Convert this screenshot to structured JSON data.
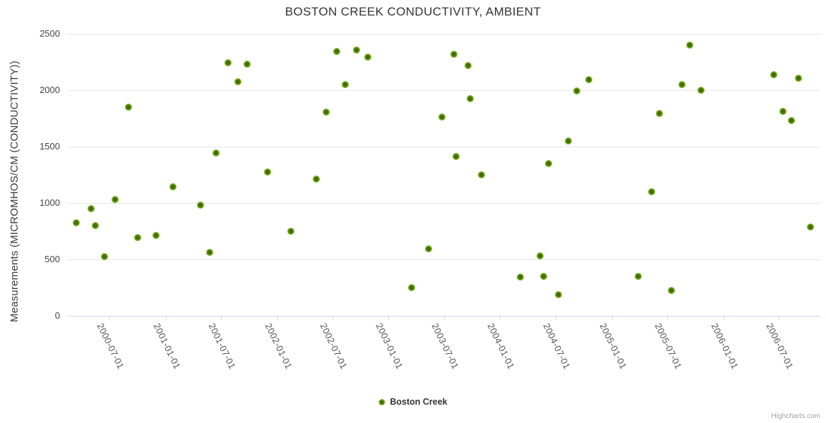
{
  "title": "BOSTON CREEK CONDUCTIVITY, AMBIENT",
  "legend": {
    "series_label": "Boston Creek"
  },
  "credits_label": "Highcharts.com",
  "colors": {
    "marker_outer": "#7cb41e",
    "marker_inner": "#406a06",
    "gridline": "#e6e6e6",
    "axis_line": "#ccd6eb",
    "title_text": "#333333",
    "axis_label_text": "#555555",
    "credits_text": "#a0a0aa",
    "background": "#ffffff"
  },
  "chart_data": {
    "type": "scatter",
    "title": "BOSTON CREEK CONDUCTIVITY, AMBIENT",
    "xlabel": "",
    "ylabel": "Measurements (MICROMHOS/CM (CONDUCTIVITY))",
    "ylim": [
      0,
      2500
    ],
    "y_ticks": [
      0,
      500,
      1000,
      1500,
      2000,
      2500
    ],
    "x_ticks": [
      "2000-07-01",
      "2001-01-01",
      "2001-07-01",
      "2002-01-01",
      "2002-07-01",
      "2003-01-01",
      "2003-07-01",
      "2004-01-01",
      "2004-07-01",
      "2005-01-01",
      "2005-07-01",
      "2006-01-01",
      "2006-07-01"
    ],
    "x_range": [
      "2000-02-13",
      "2006-11-14"
    ],
    "grid": true,
    "legend_position": "bottom-center",
    "series": [
      {
        "name": "Boston Creek",
        "points": [
          [
            "2000-03-15",
            820
          ],
          [
            "2000-05-01",
            950
          ],
          [
            "2000-05-15",
            800
          ],
          [
            "2000-06-15",
            520
          ],
          [
            "2000-07-20",
            1030
          ],
          [
            "2000-09-01",
            1850
          ],
          [
            "2000-10-01",
            690
          ],
          [
            "2000-12-01",
            710
          ],
          [
            "2001-01-25",
            1140
          ],
          [
            "2001-04-25",
            980
          ],
          [
            "2001-05-25",
            560
          ],
          [
            "2001-06-15",
            1440
          ],
          [
            "2001-07-25",
            2240
          ],
          [
            "2001-08-25",
            2070
          ],
          [
            "2001-09-25",
            2230
          ],
          [
            "2001-12-01",
            1270
          ],
          [
            "2002-02-15",
            750
          ],
          [
            "2002-05-10",
            1210
          ],
          [
            "2002-06-10",
            1805
          ],
          [
            "2002-07-15",
            2340
          ],
          [
            "2002-08-12",
            2045
          ],
          [
            "2002-09-18",
            2355
          ],
          [
            "2002-10-25",
            2290
          ],
          [
            "2003-03-18",
            250
          ],
          [
            "2003-05-12",
            590
          ],
          [
            "2003-06-24",
            1760
          ],
          [
            "2003-08-03",
            2315
          ],
          [
            "2003-08-10",
            1410
          ],
          [
            "2003-09-18",
            2215
          ],
          [
            "2003-09-24",
            1925
          ],
          [
            "2003-11-01",
            1245
          ],
          [
            "2004-03-06",
            340
          ],
          [
            "2004-05-10",
            530
          ],
          [
            "2004-05-22",
            350
          ],
          [
            "2004-06-07",
            1345
          ],
          [
            "2004-07-10",
            185
          ],
          [
            "2004-08-12",
            1550
          ],
          [
            "2004-09-08",
            1990
          ],
          [
            "2004-10-18",
            2090
          ],
          [
            "2005-03-28",
            345
          ],
          [
            "2005-05-10",
            1095
          ],
          [
            "2005-06-06",
            1790
          ],
          [
            "2005-07-15",
            225
          ],
          [
            "2005-08-18",
            2045
          ],
          [
            "2005-09-12",
            2400
          ],
          [
            "2005-10-19",
            1995
          ],
          [
            "2006-06-15",
            2135
          ],
          [
            "2006-07-15",
            1810
          ],
          [
            "2006-08-12",
            1730
          ],
          [
            "2006-09-03",
            2105
          ],
          [
            "2006-10-14",
            785
          ]
        ]
      }
    ]
  }
}
